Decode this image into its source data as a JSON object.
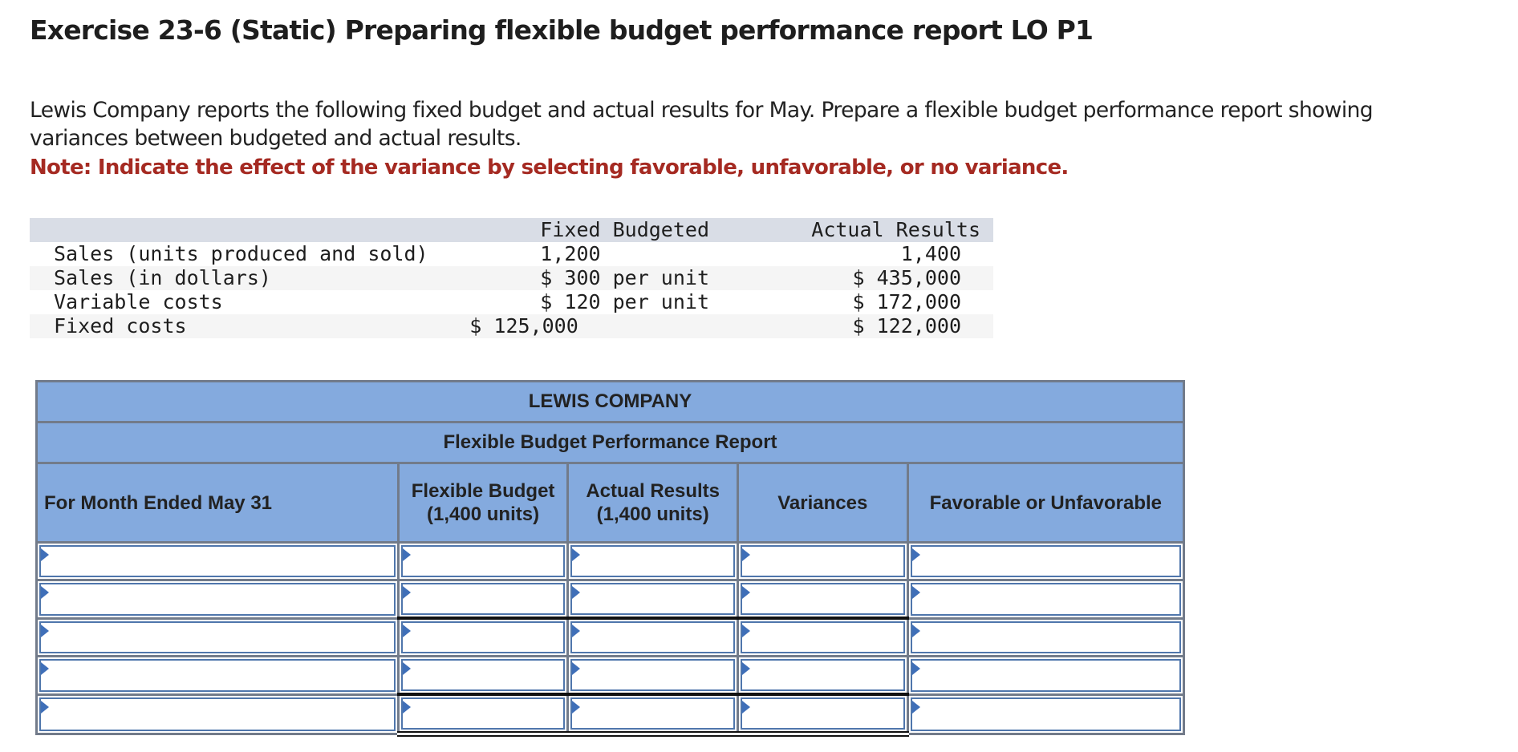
{
  "header": {
    "title": "Exercise 23-6 (Static) Preparing flexible budget performance report LO P1"
  },
  "instructions": {
    "intro": "Lewis Company reports the following fixed budget and actual results for May. Prepare a flexible budget performance report showing variances between budgeted and actual results.",
    "intro_line1": "Lewis Company reports the following fixed budget and actual results for May. Prepare a flexible budget performance report showing",
    "intro_line2": "variances between budgeted and actual results.",
    "note": "Note: Indicate the effect of the variance by selecting favorable, unfavorable, or no variance."
  },
  "given_data": {
    "columns": [
      "",
      "Fixed Budgeted",
      "Actual Results"
    ],
    "rows": [
      {
        "label": "Sales (units produced and sold)",
        "fixed": "1,200",
        "actual": "1,400"
      },
      {
        "label": "Sales (in dollars)",
        "fixed": "$ 300 per unit",
        "actual": "$ 435,000"
      },
      {
        "label": "Variable costs",
        "fixed": "$ 120 per unit",
        "actual": "$ 172,000"
      },
      {
        "label": "Fixed costs",
        "fixed": "$ 125,000",
        "actual": "$ 122,000"
      }
    ]
  },
  "report": {
    "company": "LEWIS COMPANY",
    "title": "Flexible Budget Performance Report",
    "columns": {
      "period": "For Month Ended May 31",
      "flexible_line1": "Flexible Budget",
      "flexible_line2": "(1,400 units)",
      "actual_line1": "Actual Results",
      "actual_line2": "(1,400 units)",
      "variances": "Variances",
      "favorable": "Favorable or Unfavorable"
    },
    "rows": [
      {
        "label": "",
        "flexible": "",
        "actual": "",
        "variance": "",
        "favorable": ""
      },
      {
        "label": "",
        "flexible": "",
        "actual": "",
        "variance": "",
        "favorable": ""
      },
      {
        "label": "",
        "flexible": "",
        "actual": "",
        "variance": "",
        "favorable": ""
      },
      {
        "label": "",
        "flexible": "",
        "actual": "",
        "variance": "",
        "favorable": ""
      },
      {
        "label": "",
        "flexible": "",
        "actual": "",
        "variance": "",
        "favorable": ""
      }
    ],
    "colors": {
      "header_bg": "#84aade",
      "grid_border": "#727b8a",
      "input_border": "#4f76ac",
      "marker": "#3f6fb8"
    }
  },
  "colors": {
    "note_red": "#a52a22",
    "given_header_bg": "#d9dde6",
    "given_alt_row_bg": "#f5f5f5"
  }
}
